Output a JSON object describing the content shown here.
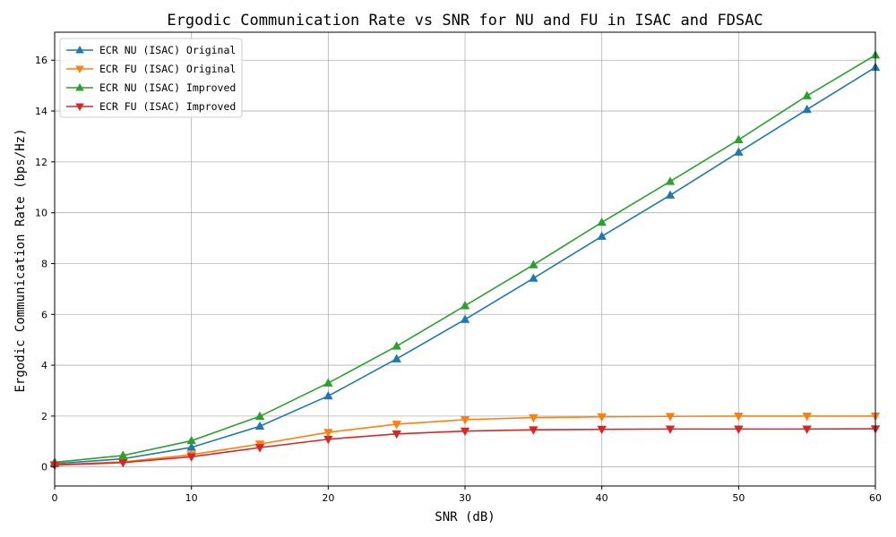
{
  "chart_data": {
    "type": "line",
    "title": "Ergodic Communication Rate vs SNR for NU and FU in ISAC and FDSAC",
    "xlabel": "SNR (dB)",
    "ylabel": "Ergodic Communication Rate (bps/Hz)",
    "xlim": [
      0,
      60
    ],
    "ylim": [
      -0.75,
      17.1
    ],
    "xticks": [
      0,
      10,
      20,
      30,
      40,
      50,
      60
    ],
    "yticks": [
      0,
      2,
      4,
      6,
      8,
      10,
      12,
      14,
      16
    ],
    "grid": true,
    "legend_position": "top-left",
    "x": [
      0,
      5,
      10,
      15,
      20,
      25,
      30,
      35,
      40,
      45,
      50,
      55,
      60
    ],
    "series": [
      {
        "name": "ECR NU (ISAC) Original",
        "color": "#1f77b4",
        "marker": "triangle-up",
        "values": [
          0.13,
          0.32,
          0.77,
          1.6,
          2.79,
          4.25,
          5.8,
          7.42,
          9.07,
          10.69,
          12.38,
          14.06,
          15.72
        ]
      },
      {
        "name": "ECR FU (ISAC) Original",
        "color": "#ff7f0e",
        "marker": "triangle-down",
        "values": [
          0.09,
          0.2,
          0.48,
          0.9,
          1.36,
          1.68,
          1.86,
          1.94,
          1.97,
          1.99,
          2.0,
          2.0,
          2.0
        ]
      },
      {
        "name": "ECR NU (ISAC) Improved",
        "color": "#2ca02c",
        "marker": "triangle-up",
        "values": [
          0.18,
          0.45,
          1.03,
          1.99,
          3.3,
          4.75,
          6.34,
          7.95,
          9.62,
          11.23,
          12.87,
          14.6,
          16.2
        ]
      },
      {
        "name": "ECR FU (ISAC) Improved",
        "color": "#d62728",
        "marker": "triangle-down",
        "values": [
          0.07,
          0.17,
          0.4,
          0.76,
          1.09,
          1.3,
          1.41,
          1.46,
          1.48,
          1.49,
          1.49,
          1.49,
          1.5
        ]
      }
    ]
  }
}
